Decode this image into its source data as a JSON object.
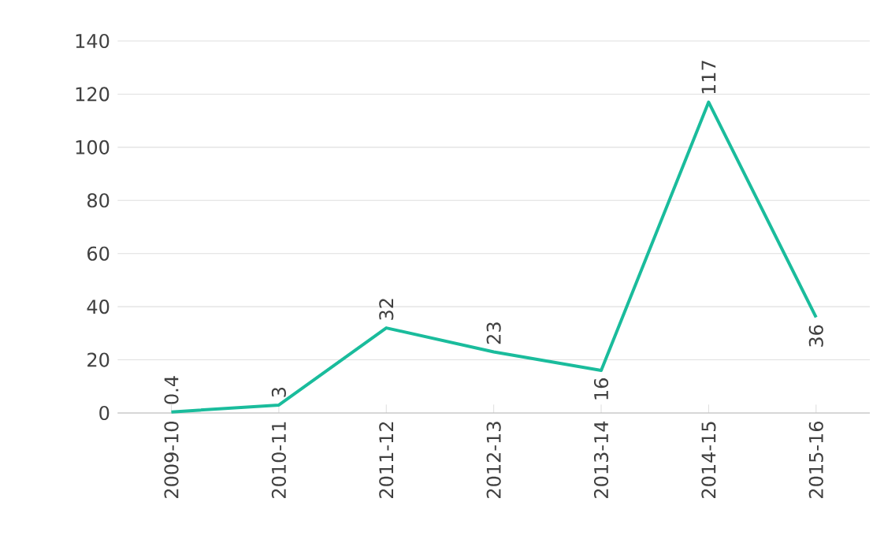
{
  "chart_data": {
    "type": "line",
    "categories": [
      "2009-10",
      "2010-11",
      "2011-12",
      "2012-13",
      "2013-14",
      "2014-15",
      "2015-16"
    ],
    "values": [
      0.4,
      3,
      32,
      23,
      16,
      117,
      36
    ],
    "color": "#1abc9c",
    "ylim": [
      0,
      140
    ],
    "yticks": [
      0,
      20,
      40,
      60,
      80,
      100,
      120,
      140
    ],
    "grid": "y",
    "data_labels": true,
    "marker": "none",
    "line_style": "solid"
  }
}
